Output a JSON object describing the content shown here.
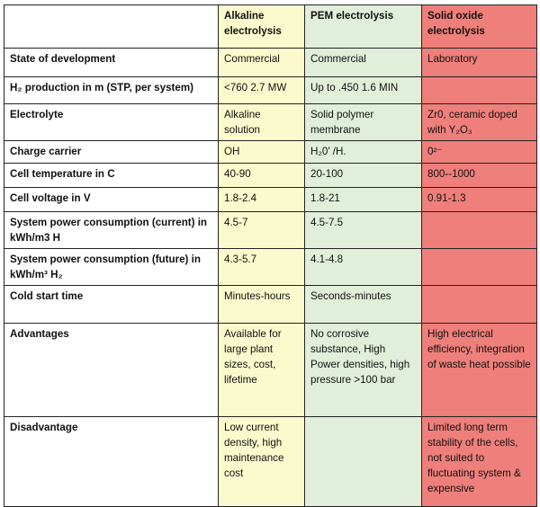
{
  "table": {
    "headers": [
      "",
      "Alkaline electrolysis",
      "PEM electrolysis",
      "Solid oxide electrolysis"
    ],
    "rows": [
      {
        "label": "State of development",
        "alk": "Commercial",
        "pem": "Commercial",
        "sox": "Laboratory"
      },
      {
        "label": "H₂ production in m (STP, per system)",
        "alk": "<760 2.7 MW",
        "pem": "Up to .450 1.6 MIN",
        "sox": ""
      },
      {
        "label": "Electrolyte",
        "alk": "Alkaline solution",
        "pem": "Solid polymer membrane",
        "sox": "Zr0, ceramic doped with Y₂O₃"
      },
      {
        "label": "Charge carrier",
        "alk": "OH",
        "pem": "H₂0' /H.",
        "sox": "0²⁻"
      },
      {
        "label": "Cell temperature in C",
        "alk": "40-90",
        "pem": "20-100",
        "sox": "800--1000"
      },
      {
        "label": "Cell voltage in V",
        "alk": "1.8-2.4",
        "pem": "1.8-21",
        "sox": "0.91-1.3"
      },
      {
        "label": "System power consumption (current) in kWh/m3 H",
        "alk": "4.5-7",
        "pem": "4.5-7.5",
        "sox": ""
      },
      {
        "label": "System power consumption  (future) in kWh/m³ H₂",
        "alk": "4.3-5.7",
        "pem": "4.1-4.8",
        "sox": ""
      },
      {
        "label": "Cold start time",
        "alk": "Minutes-hours",
        "pem": "Seconds-minutes",
        "sox": ""
      },
      {
        "label": "Advantages",
        "alk": "Available for large plant sizes, cost, lifetime",
        "pem": "No corrosive substance, High Power densities, high pressure >100 bar",
        "sox": "High electrical efficiency, integration of waste heat possible"
      },
      {
        "label": "Disadvantage",
        "alk": "Low current density, high maintenance cost",
        "pem": "",
        "sox": "Limited long term stability of the cells, not suited to fluctuating system & expensive"
      }
    ]
  },
  "colors": {
    "alkaline": "#fbfacd",
    "pem": "#e1eed9",
    "solid_oxide": "#ef7f7b"
  }
}
